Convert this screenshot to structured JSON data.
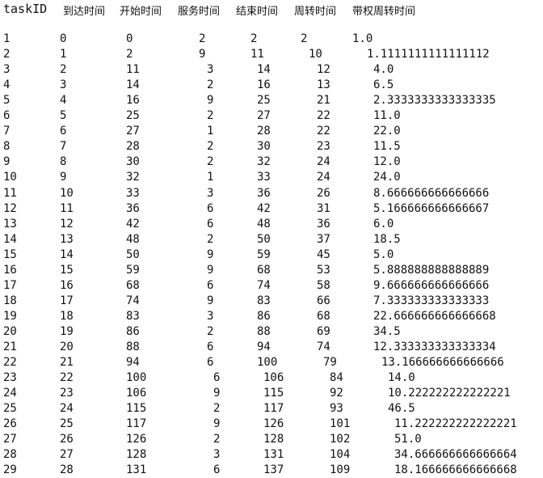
{
  "headers": [
    "taskID",
    "到达时间",
    "开始时间",
    "服务时间",
    "结束时间",
    "周转时间",
    "带权周转时间"
  ],
  "rows": [
    [
      "1",
      "0",
      "0",
      "2",
      "2",
      "2",
      "1.0"
    ],
    [
      "2",
      "1",
      "2",
      "9",
      "11",
      "10",
      "1.1111111111111112"
    ],
    [
      "3",
      "2",
      "11",
      "3",
      "14",
      "12",
      "4.0"
    ],
    [
      "4",
      "3",
      "14",
      "2",
      "16",
      "13",
      "6.5"
    ],
    [
      "5",
      "4",
      "16",
      "9",
      "25",
      "21",
      "2.3333333333333335"
    ],
    [
      "6",
      "5",
      "25",
      "2",
      "27",
      "22",
      "11.0"
    ],
    [
      "7",
      "6",
      "27",
      "1",
      "28",
      "22",
      "22.0"
    ],
    [
      "8",
      "7",
      "28",
      "2",
      "30",
      "23",
      "11.5"
    ],
    [
      "9",
      "8",
      "30",
      "2",
      "32",
      "24",
      "12.0"
    ],
    [
      "10",
      "9",
      "32",
      "1",
      "33",
      "24",
      "24.0"
    ],
    [
      "11",
      "10",
      "33",
      "3",
      "36",
      "26",
      "8.666666666666666"
    ],
    [
      "12",
      "11",
      "36",
      "6",
      "42",
      "31",
      "5.166666666666667"
    ],
    [
      "13",
      "12",
      "42",
      "6",
      "48",
      "36",
      "6.0"
    ],
    [
      "14",
      "13",
      "48",
      "2",
      "50",
      "37",
      "18.5"
    ],
    [
      "15",
      "14",
      "50",
      "9",
      "59",
      "45",
      "5.0"
    ],
    [
      "16",
      "15",
      "59",
      "9",
      "68",
      "53",
      "5.888888888888889"
    ],
    [
      "17",
      "16",
      "68",
      "6",
      "74",
      "58",
      "9.666666666666666"
    ],
    [
      "18",
      "17",
      "74",
      "9",
      "83",
      "66",
      "7.333333333333333"
    ],
    [
      "19",
      "18",
      "83",
      "3",
      "86",
      "68",
      "22.666666666666668"
    ],
    [
      "20",
      "19",
      "86",
      "2",
      "88",
      "69",
      "34.5"
    ],
    [
      "21",
      "20",
      "88",
      "6",
      "94",
      "74",
      "12.333333333333334"
    ],
    [
      "22",
      "21",
      "94",
      "6",
      "100",
      "79",
      "13.166666666666666"
    ],
    [
      "23",
      "22",
      "100",
      "6",
      "106",
      "84",
      "14.0"
    ],
    [
      "24",
      "23",
      "106",
      "9",
      "115",
      "92",
      "10.222222222222221"
    ],
    [
      "25",
      "24",
      "115",
      "2",
      "117",
      "93",
      "46.5"
    ],
    [
      "26",
      "25",
      "117",
      "9",
      "126",
      "101",
      "11.222222222222221"
    ],
    [
      "27",
      "26",
      "126",
      "2",
      "128",
      "102",
      "51.0"
    ],
    [
      "28",
      "27",
      "128",
      "3",
      "131",
      "104",
      "34.666666666666664"
    ],
    [
      "29",
      "28",
      "131",
      "6",
      "137",
      "109",
      "18.166666666666668"
    ]
  ]
}
